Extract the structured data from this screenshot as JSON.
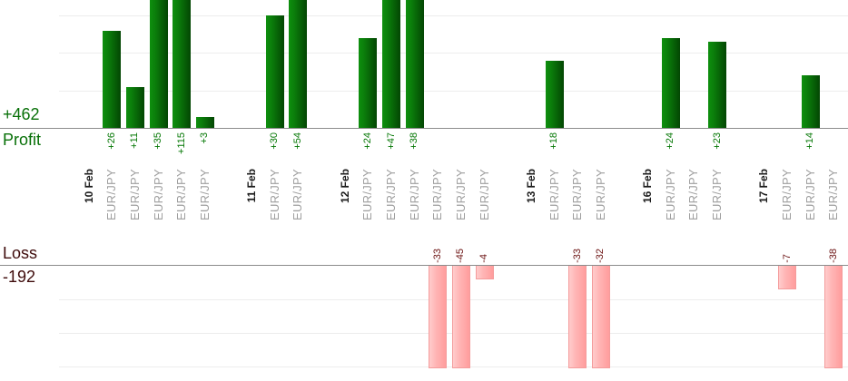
{
  "chart_data": {
    "type": "bar",
    "title": "",
    "legend": "none",
    "grid": true,
    "profit": {
      "axis_label": "Profit",
      "total_label": "+462",
      "total": 462,
      "visible_axis_max": 30,
      "gridline_step": 10
    },
    "loss": {
      "axis_label": "Loss",
      "total_label": "-192",
      "total": -192,
      "visible_axis_min": -30,
      "gridline_step": 10
    },
    "groups": [
      {
        "date": "10 Feb",
        "trades": [
          {
            "symbol": "EUR/JPY",
            "value": 26,
            "label": "+26"
          },
          {
            "symbol": "EUR/JPY",
            "value": 11,
            "label": "+11"
          },
          {
            "symbol": "EUR/JPY",
            "value": 35,
            "label": "+35"
          },
          {
            "symbol": "EUR/JPY",
            "value": 115,
            "label": "+115"
          },
          {
            "symbol": "EUR/JPY",
            "value": 3,
            "label": "+3"
          }
        ]
      },
      {
        "date": "11 Feb",
        "trades": [
          {
            "symbol": "EUR/JPY",
            "value": 30,
            "label": "+30"
          },
          {
            "symbol": "EUR/JPY",
            "value": 54,
            "label": "+54"
          }
        ]
      },
      {
        "date": "12 Feb",
        "trades": [
          {
            "symbol": "EUR/JPY",
            "value": 24,
            "label": "+24"
          },
          {
            "symbol": "EUR/JPY",
            "value": 47,
            "label": "+47"
          },
          {
            "symbol": "EUR/JPY",
            "value": 38,
            "label": "+38"
          },
          {
            "symbol": "EUR/JPY",
            "value": -33,
            "label": "-33"
          },
          {
            "symbol": "EUR/JPY",
            "value": -45,
            "label": "-45"
          },
          {
            "symbol": "EUR/JPY",
            "value": -4,
            "label": "-4"
          }
        ]
      },
      {
        "date": "13 Feb",
        "trades": [
          {
            "symbol": "EUR/JPY",
            "value": 18,
            "label": "+18"
          },
          {
            "symbol": "EUR/JPY",
            "value": -33,
            "label": "-33"
          },
          {
            "symbol": "EUR/JPY",
            "value": -32,
            "label": "-32"
          }
        ]
      },
      {
        "date": "16 Feb",
        "trades": [
          {
            "symbol": "EUR/JPY",
            "value": 24,
            "label": "+24"
          },
          {
            "symbol": "EUR/JPY",
            "value": 0,
            "label": ""
          },
          {
            "symbol": "EUR/JPY",
            "value": 23,
            "label": "+23"
          }
        ]
      },
      {
        "date": "17 Feb",
        "trades": [
          {
            "symbol": "EUR/JPY",
            "value": -7,
            "label": "-7"
          },
          {
            "symbol": "EUR/JPY",
            "value": 14,
            "label": "+14"
          },
          {
            "symbol": "EUR/JPY",
            "value": -38,
            "label": "-38"
          }
        ]
      }
    ],
    "colors": {
      "profit_bar_light": "#0E8F0E",
      "profit_bar_mid": "#0B7E0B",
      "profit_bar_dark": "#034603",
      "loss_bar_light": "#FFCCCC",
      "loss_bar_mid": "#FFB5B5",
      "loss_bar_dark": "#FF9D9D",
      "loss_bar_border": "#F49C9C",
      "profit_text": "#067806",
      "loss_text": "#6B1212",
      "profit_total_text": "#087008",
      "loss_total_text": "#3F0C0C",
      "date_text": "#1C1C1C",
      "symbol_text": "#9E9E9E",
      "baseline": "#8C8C8C",
      "gridline": "#EDEDED"
    }
  }
}
